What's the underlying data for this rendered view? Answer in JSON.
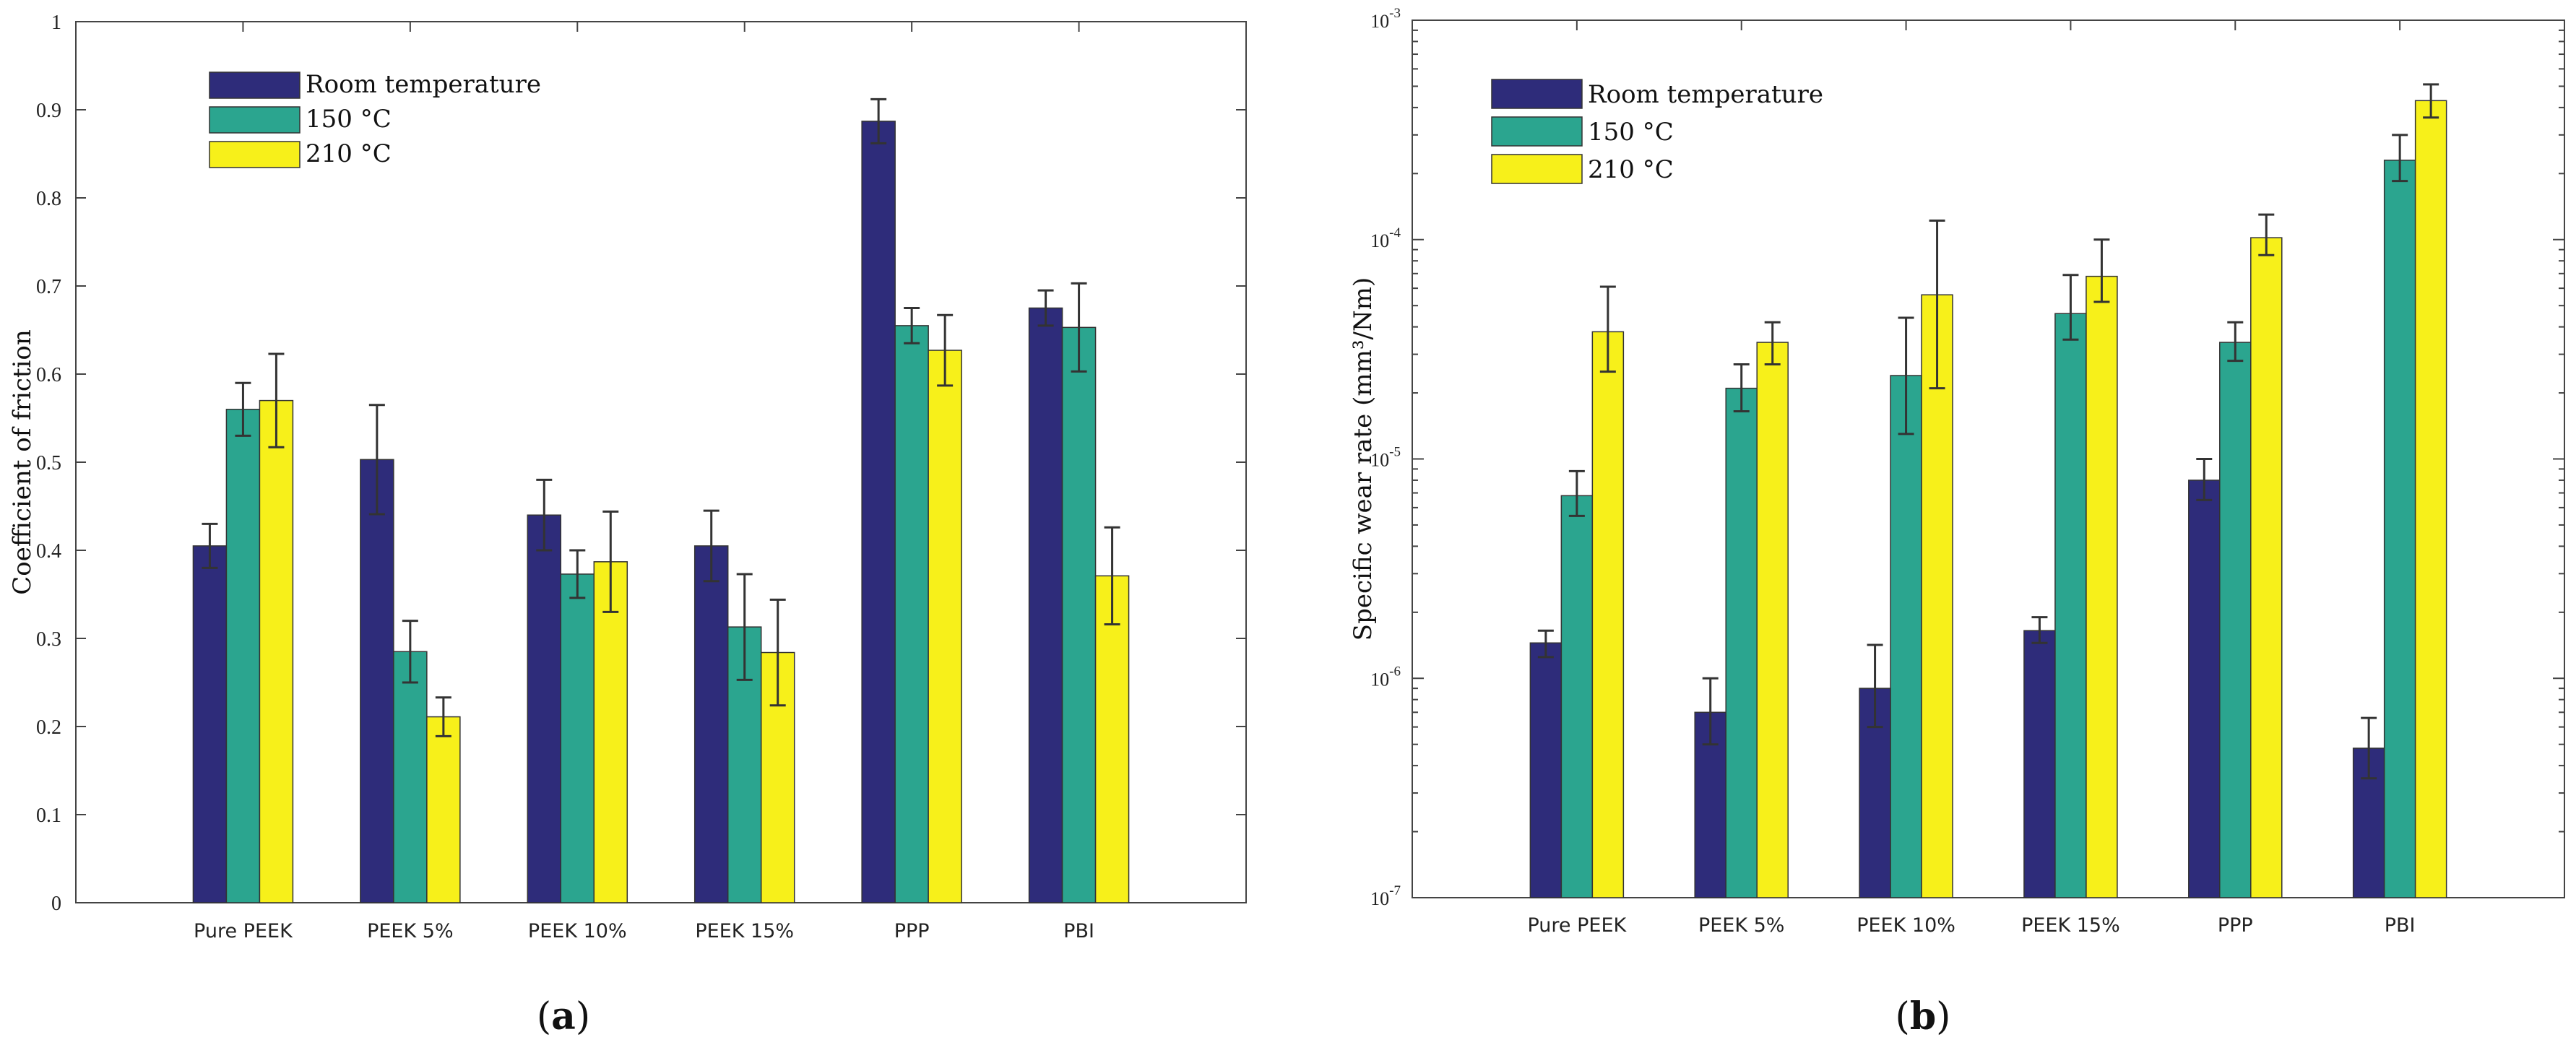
{
  "chart_data": [
    {
      "type": "bar",
      "panel_label": "(a)",
      "ylabel": "Coefficient of friction",
      "ylim": [
        0,
        1
      ],
      "yscale": "linear",
      "yticks": [
        0,
        0.1,
        0.2,
        0.3,
        0.4,
        0.5,
        0.6,
        0.7,
        0.8,
        0.9,
        1
      ],
      "ytick_labels": [
        "0",
        "0.1",
        "0.2",
        "0.3",
        "0.4",
        "0.5",
        "0.6",
        "0.7",
        "0.8",
        "0.9",
        "1"
      ],
      "legend_position": "top-left",
      "categories": [
        "Pure PEEK",
        "PEEK 5%",
        "PEEK 10%",
        "PEEK 15%",
        "PPP",
        "PBI"
      ],
      "series": [
        {
          "name": "Room temperature",
          "color": "#2e2c7a",
          "values": [
            0.405,
            0.503,
            0.44,
            0.405,
            0.887,
            0.675
          ],
          "errors": [
            0.025,
            0.062,
            0.04,
            0.04,
            0.025,
            0.02
          ]
        },
        {
          "name": "150 °C",
          "color": "#2ba58f",
          "values": [
            0.56,
            0.285,
            0.373,
            0.313,
            0.655,
            0.653
          ],
          "errors": [
            0.03,
            0.035,
            0.027,
            0.06,
            0.02,
            0.05
          ]
        },
        {
          "name": "210 °C",
          "color": "#f7f01a",
          "values": [
            0.57,
            0.211,
            0.387,
            0.284,
            0.627,
            0.371
          ],
          "errors": [
            0.053,
            0.022,
            0.057,
            0.06,
            0.04,
            0.055
          ]
        }
      ]
    },
    {
      "type": "bar",
      "panel_label": "(b)",
      "ylabel": "Specific wear rate (mm³/Nm)",
      "ylim": [
        1e-07,
        0.001
      ],
      "yscale": "log",
      "ytick_exponents": [
        -7,
        -6,
        -5,
        -4,
        -3
      ],
      "ytick_base": "10",
      "legend_position": "top-left",
      "categories": [
        "Pure PEEK",
        "PEEK 5%",
        "PEEK 10%",
        "PEEK 15%",
        "PPP",
        "PBI"
      ],
      "series": [
        {
          "name": "Room temperature",
          "color": "#2e2c7a",
          "values": [
            1.45e-06,
            7e-07,
            9e-07,
            1.65e-06,
            8e-06,
            4.8e-07
          ],
          "err_low": [
            1.25e-06,
            5e-07,
            6e-07,
            1.45e-06,
            6.5e-06,
            3.5e-07
          ],
          "err_high": [
            1.65e-06,
            1e-06,
            1.42e-06,
            1.9e-06,
            1e-05,
            6.6e-07
          ]
        },
        {
          "name": "150 °C",
          "color": "#2ba58f",
          "values": [
            6.8e-06,
            2.1e-05,
            2.4e-05,
            4.6e-05,
            3.4e-05,
            0.00023
          ],
          "err_low": [
            5.5e-06,
            1.65e-05,
            1.3e-05,
            3.5e-05,
            2.8e-05,
            0.000185
          ],
          "err_high": [
            8.8e-06,
            2.7e-05,
            4.4e-05,
            6.9e-05,
            4.2e-05,
            0.0003
          ]
        },
        {
          "name": "210 °C",
          "color": "#f7f01a",
          "values": [
            3.8e-05,
            3.4e-05,
            5.6e-05,
            6.8e-05,
            0.000102,
            0.00043
          ],
          "err_low": [
            2.5e-05,
            2.7e-05,
            2.1e-05,
            5.2e-05,
            8.5e-05,
            0.00036
          ],
          "err_high": [
            6.1e-05,
            4.2e-05,
            0.000122,
            0.0001,
            0.00013,
            0.00051
          ]
        }
      ]
    }
  ]
}
